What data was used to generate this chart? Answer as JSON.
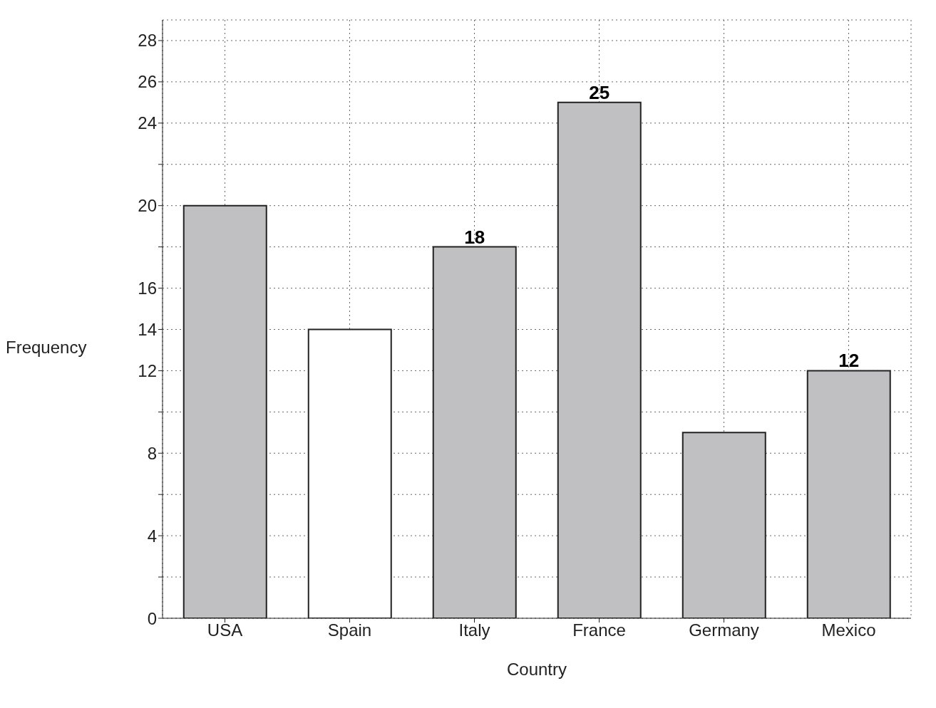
{
  "chart_data": {
    "type": "bar",
    "xlabel": "Country",
    "ylabel": "Frequency",
    "categories": [
      "USA",
      "Spain",
      "Italy",
      "France",
      "Germany",
      "Mexico"
    ],
    "values": [
      20,
      14,
      18,
      25,
      9,
      12
    ],
    "colors": [
      "#c0c0c2",
      "#ffffff",
      "#c0c0c2",
      "#c0c0c2",
      "#c0c0c2",
      "#c0c0c2"
    ],
    "value_labels": [
      null,
      null,
      "18",
      "25",
      null,
      "12"
    ],
    "ylim": [
      0,
      29
    ],
    "yticks": [
      0,
      {
        "value": 2,
        "label": null
      },
      4,
      {
        "value": 6,
        "label": null
      },
      8,
      {
        "value": 10,
        "label": null
      },
      12,
      14,
      16,
      {
        "value": 18,
        "label": null
      },
      20,
      {
        "value": 22,
        "label": null
      },
      24,
      26,
      28
    ],
    "grid": true,
    "legend": false
  }
}
